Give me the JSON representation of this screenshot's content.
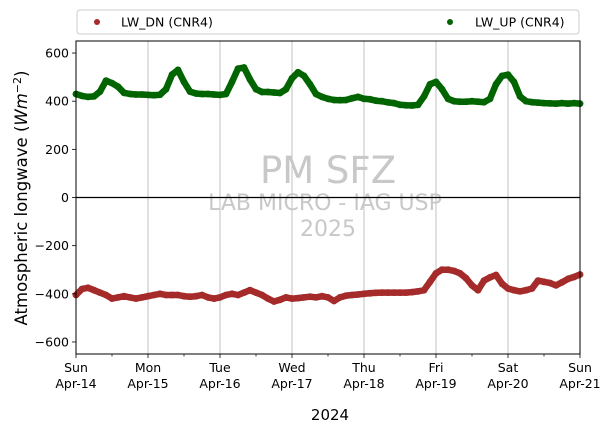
{
  "chart_data": {
    "type": "scatter",
    "title": "",
    "xlabel": "2024",
    "ylabel_main": "Atmospheric longwave (",
    "ylabel_unit_base": "Wm",
    "ylabel_unit_exp": "−2",
    "ylabel_close": ")",
    "xlim": [
      "2024-04-14",
      "2024-04-21"
    ],
    "ylim": [
      -650,
      650
    ],
    "yticks": [
      -600,
      -400,
      -200,
      0,
      200,
      400,
      600
    ],
    "xticks": [
      {
        "day": "Sun",
        "date": "Apr-14"
      },
      {
        "day": "Mon",
        "date": "Apr-15"
      },
      {
        "day": "Tue",
        "date": "Apr-16"
      },
      {
        "day": "Wed",
        "date": "Apr-17"
      },
      {
        "day": "Thu",
        "date": "Apr-18"
      },
      {
        "day": "Fri",
        "date": "Apr-19"
      },
      {
        "day": "Sat",
        "date": "Apr-20"
      },
      {
        "day": "Sun",
        "date": "Apr-21"
      }
    ],
    "grid": "vertical",
    "zero_line": true,
    "legend_position": "top",
    "watermark": {
      "line1": "PM SFZ",
      "line2": "LAB MICRO - IAG USP",
      "line3": "2025"
    },
    "series": [
      {
        "name": "LW_DN (CNR4)",
        "color": "#a52a2a",
        "x": [
          "2024-04-14T00:00",
          "2024-04-14T02:00",
          "2024-04-14T04:00",
          "2024-04-14T06:00",
          "2024-04-14T08:00",
          "2024-04-14T10:00",
          "2024-04-14T12:00",
          "2024-04-14T14:00",
          "2024-04-14T16:00",
          "2024-04-14T18:00",
          "2024-04-14T20:00",
          "2024-04-14T22:00",
          "2024-04-15T00:00",
          "2024-04-15T02:00",
          "2024-04-15T04:00",
          "2024-04-15T06:00",
          "2024-04-15T08:00",
          "2024-04-15T10:00",
          "2024-04-15T12:00",
          "2024-04-15T14:00",
          "2024-04-15T16:00",
          "2024-04-15T18:00",
          "2024-04-15T20:00",
          "2024-04-15T22:00",
          "2024-04-16T00:00",
          "2024-04-16T02:00",
          "2024-04-16T04:00",
          "2024-04-16T06:00",
          "2024-04-16T08:00",
          "2024-04-16T10:00",
          "2024-04-16T12:00",
          "2024-04-16T14:00",
          "2024-04-16T16:00",
          "2024-04-16T18:00",
          "2024-04-16T20:00",
          "2024-04-16T22:00",
          "2024-04-17T00:00",
          "2024-04-17T02:00",
          "2024-04-17T04:00",
          "2024-04-17T06:00",
          "2024-04-17T08:00",
          "2024-04-17T10:00",
          "2024-04-17T12:00",
          "2024-04-17T14:00",
          "2024-04-17T16:00",
          "2024-04-17T18:00",
          "2024-04-17T20:00",
          "2024-04-17T22:00",
          "2024-04-18T00:00",
          "2024-04-18T02:00",
          "2024-04-18T04:00",
          "2024-04-18T06:00",
          "2024-04-18T08:00",
          "2024-04-18T10:00",
          "2024-04-18T12:00",
          "2024-04-18T14:00",
          "2024-04-18T16:00",
          "2024-04-18T18:00",
          "2024-04-18T20:00",
          "2024-04-18T22:00",
          "2024-04-19T00:00",
          "2024-04-19T02:00",
          "2024-04-19T04:00",
          "2024-04-19T06:00",
          "2024-04-19T08:00",
          "2024-04-19T10:00",
          "2024-04-19T12:00",
          "2024-04-19T14:00",
          "2024-04-19T16:00",
          "2024-04-19T18:00",
          "2024-04-19T20:00",
          "2024-04-19T22:00",
          "2024-04-20T00:00",
          "2024-04-20T02:00",
          "2024-04-20T04:00",
          "2024-04-20T06:00",
          "2024-04-20T08:00",
          "2024-04-20T10:00",
          "2024-04-20T12:00",
          "2024-04-20T14:00",
          "2024-04-20T16:00",
          "2024-04-20T18:00",
          "2024-04-20T20:00",
          "2024-04-20T22:00",
          "2024-04-21T00:00"
        ],
        "y": [
          -405,
          -380,
          -375,
          -385,
          -395,
          -405,
          -420,
          -415,
          -410,
          -415,
          -420,
          -415,
          -410,
          -405,
          -400,
          -405,
          -405,
          -405,
          -410,
          -412,
          -410,
          -405,
          -415,
          -420,
          -415,
          -405,
          -400,
          -405,
          -395,
          -385,
          -395,
          -405,
          -420,
          -432,
          -425,
          -415,
          -420,
          -418,
          -415,
          -412,
          -415,
          -410,
          -415,
          -430,
          -415,
          -408,
          -405,
          -403,
          -400,
          -398,
          -396,
          -395,
          -395,
          -395,
          -395,
          -395,
          -393,
          -390,
          -385,
          -350,
          -315,
          -300,
          -300,
          -305,
          -315,
          -335,
          -365,
          -385,
          -345,
          -332,
          -322,
          -358,
          -378,
          -385,
          -390,
          -385,
          -378,
          -345,
          -350,
          -355,
          -365,
          -352,
          -338,
          -330,
          -320
        ],
        "mark": "circle"
      },
      {
        "name": "LW_UP (CNR4)",
        "color": "#006400",
        "x": [
          "2024-04-14T00:00",
          "2024-04-14T02:00",
          "2024-04-14T04:00",
          "2024-04-14T06:00",
          "2024-04-14T08:00",
          "2024-04-14T10:00",
          "2024-04-14T12:00",
          "2024-04-14T14:00",
          "2024-04-14T16:00",
          "2024-04-14T18:00",
          "2024-04-14T20:00",
          "2024-04-14T22:00",
          "2024-04-15T00:00",
          "2024-04-15T02:00",
          "2024-04-15T04:00",
          "2024-04-15T06:00",
          "2024-04-15T08:00",
          "2024-04-15T10:00",
          "2024-04-15T12:00",
          "2024-04-15T14:00",
          "2024-04-15T16:00",
          "2024-04-15T18:00",
          "2024-04-15T20:00",
          "2024-04-15T22:00",
          "2024-04-16T00:00",
          "2024-04-16T02:00",
          "2024-04-16T04:00",
          "2024-04-16T06:00",
          "2024-04-16T08:00",
          "2024-04-16T10:00",
          "2024-04-16T12:00",
          "2024-04-16T14:00",
          "2024-04-16T16:00",
          "2024-04-16T18:00",
          "2024-04-16T20:00",
          "2024-04-16T22:00",
          "2024-04-17T00:00",
          "2024-04-17T02:00",
          "2024-04-17T04:00",
          "2024-04-17T06:00",
          "2024-04-17T08:00",
          "2024-04-17T10:00",
          "2024-04-17T12:00",
          "2024-04-17T14:00",
          "2024-04-17T16:00",
          "2024-04-17T18:00",
          "2024-04-17T20:00",
          "2024-04-17T22:00",
          "2024-04-18T00:00",
          "2024-04-18T02:00",
          "2024-04-18T04:00",
          "2024-04-18T06:00",
          "2024-04-18T08:00",
          "2024-04-18T10:00",
          "2024-04-18T12:00",
          "2024-04-18T14:00",
          "2024-04-18T16:00",
          "2024-04-18T18:00",
          "2024-04-18T20:00",
          "2024-04-18T22:00",
          "2024-04-19T00:00",
          "2024-04-19T02:00",
          "2024-04-19T04:00",
          "2024-04-19T06:00",
          "2024-04-19T08:00",
          "2024-04-19T10:00",
          "2024-04-19T12:00",
          "2024-04-19T14:00",
          "2024-04-19T16:00",
          "2024-04-19T18:00",
          "2024-04-19T20:00",
          "2024-04-19T22:00",
          "2024-04-20T00:00",
          "2024-04-20T02:00",
          "2024-04-20T04:00",
          "2024-04-20T06:00",
          "2024-04-20T08:00",
          "2024-04-20T10:00",
          "2024-04-20T12:00",
          "2024-04-20T14:00",
          "2024-04-20T16:00",
          "2024-04-20T18:00",
          "2024-04-20T20:00",
          "2024-04-20T22:00",
          "2024-04-21T00:00"
        ],
        "y": [
          430,
          422,
          418,
          420,
          440,
          485,
          475,
          460,
          435,
          430,
          428,
          428,
          426,
          425,
          427,
          450,
          510,
          530,
          480,
          440,
          432,
          430,
          430,
          428,
          426,
          430,
          480,
          535,
          540,
          490,
          450,
          438,
          438,
          436,
          434,
          450,
          495,
          520,
          505,
          470,
          430,
          418,
          410,
          405,
          404,
          405,
          412,
          418,
          410,
          408,
          402,
          400,
          395,
          392,
          385,
          383,
          382,
          385,
          420,
          470,
          480,
          450,
          410,
          400,
          398,
          398,
          400,
          398,
          396,
          410,
          470,
          505,
          510,
          480,
          420,
          400,
          396,
          394,
          392,
          391,
          390,
          392,
          390,
          392,
          390
        ],
        "mark": "circle"
      }
    ]
  }
}
